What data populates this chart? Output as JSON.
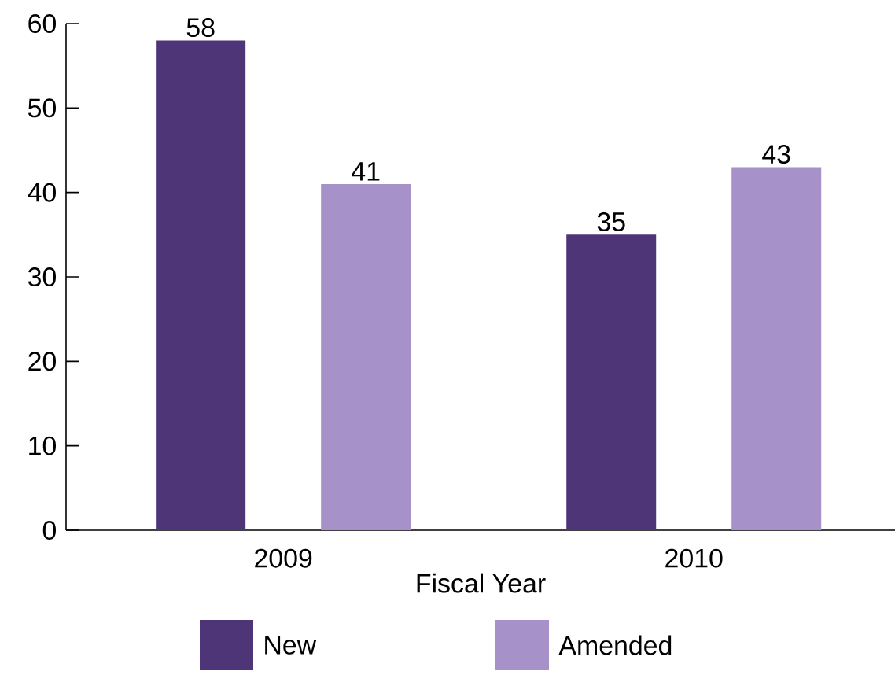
{
  "chart_data": {
    "type": "bar",
    "xlabel": "Fiscal Year",
    "categories": [
      "2009",
      "2010"
    ],
    "series": [
      {
        "name": "New",
        "color": "#4e3578",
        "values": [
          58,
          35
        ]
      },
      {
        "name": "Amended",
        "color": "#a692c8",
        "values": [
          41,
          43
        ]
      }
    ],
    "ylim": [
      0,
      60
    ],
    "yticks": [
      0,
      10,
      20,
      30,
      40,
      50,
      60
    ],
    "data_labels": true,
    "legend": "bottom",
    "grid": false
  }
}
